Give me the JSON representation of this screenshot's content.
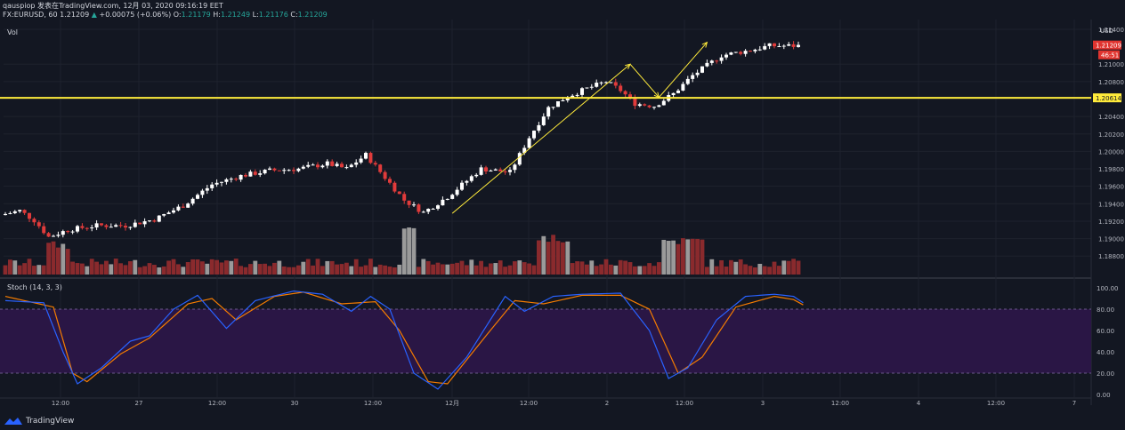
{
  "header": {
    "line1": "qauspiop 发表在TradingView.com, 12月 03, 2020 09:16:19 EET",
    "symbol": "FX:EURUSD, 60",
    "last": "1.21209",
    "change": "+0.00075 (+0.06%)",
    "o_label": "O:",
    "o": "1.21179",
    "h_label": "H:",
    "h": "1.21249",
    "l_label": "L:",
    "l": "1.21176",
    "c_label": "C:",
    "c": "1.21209"
  },
  "labels": {
    "vol": "Vol",
    "stoch": "Stoch (14, 3, 3)",
    "currency": "USD",
    "price_badge": "1.21209",
    "countdown": "46:51",
    "hline_badge": "1.20614",
    "brand": "TradingView"
  },
  "colors": {
    "background": "#131722",
    "grid": "#1e222d",
    "bull": "#ffffff",
    "bear": "#e03b3b",
    "vol_bear": "#8a2a2d",
    "vol_neutral": "#9a9a9a",
    "hline": "#ffeb3b",
    "stoch_k": "#2962ff",
    "stoch_d": "#f57c00",
    "stoch_band": "#2a1645",
    "badge_red": "#e0342f"
  },
  "icons": {
    "brand": "tradingview-logo-icon"
  },
  "chart_data": {
    "type": "candlestick",
    "symbol": "FX:EURUSD",
    "timeframe": "60",
    "x_ticks": [
      "12:00",
      "27",
      "12:00",
      "30",
      "12:00",
      "12月",
      "12:00",
      "2",
      "12:00",
      "3",
      "12:00",
      "4",
      "12:00",
      "7"
    ],
    "price_ticks": [
      "1.21400",
      "1.21000",
      "1.20800",
      "1.20400",
      "1.20200",
      "1.20000",
      "1.19800",
      "1.19600",
      "1.19400",
      "1.19200",
      "1.19000",
      "1.18800"
    ],
    "price_range": [
      1.1868,
      1.2143
    ],
    "horizontal_line": 1.20614,
    "last_price": 1.21209,
    "price_waypoints": [
      [
        0,
        1.1927
      ],
      [
        4,
        1.1932
      ],
      [
        7,
        1.1921
      ],
      [
        10,
        1.1902
      ],
      [
        14,
        1.191
      ],
      [
        20,
        1.1915
      ],
      [
        26,
        1.1915
      ],
      [
        32,
        1.1922
      ],
      [
        38,
        1.1938
      ],
      [
        44,
        1.1962
      ],
      [
        50,
        1.1972
      ],
      [
        56,
        1.1978
      ],
      [
        62,
        1.198
      ],
      [
        68,
        1.1986
      ],
      [
        72,
        1.198
      ],
      [
        76,
        1.1996
      ],
      [
        80,
        1.197
      ],
      [
        84,
        1.1944
      ],
      [
        88,
        1.193
      ],
      [
        93,
        1.1948
      ],
      [
        100,
        1.198
      ],
      [
        106,
        1.1976
      ],
      [
        110,
        1.2016
      ],
      [
        114,
        1.205
      ],
      [
        118,
        1.2063
      ],
      [
        122,
        1.2072
      ],
      [
        126,
        1.208
      ],
      [
        129,
        1.207
      ],
      [
        132,
        1.2055
      ],
      [
        136,
        1.2052
      ],
      [
        140,
        1.2066
      ],
      [
        144,
        1.2087
      ],
      [
        150,
        1.211
      ],
      [
        156,
        1.2116
      ],
      [
        160,
        1.2121
      ],
      [
        166,
        1.2121
      ]
    ],
    "volume_ticks": [],
    "stoch_ticks": [
      "100.00",
      "80.00",
      "60.00",
      "40.00",
      "20.00",
      "0.00"
    ],
    "stoch_band": [
      20,
      80
    ],
    "stoch_k": [
      [
        0,
        88
      ],
      [
        8,
        86
      ],
      [
        12,
        40
      ],
      [
        15,
        10
      ],
      [
        20,
        25
      ],
      [
        26,
        50
      ],
      [
        30,
        55
      ],
      [
        35,
        80
      ],
      [
        40,
        93
      ],
      [
        46,
        62
      ],
      [
        52,
        88
      ],
      [
        60,
        97
      ],
      [
        66,
        94
      ],
      [
        72,
        78
      ],
      [
        76,
        92
      ],
      [
        80,
        80
      ],
      [
        85,
        20
      ],
      [
        90,
        5
      ],
      [
        96,
        35
      ],
      [
        104,
        92
      ],
      [
        108,
        78
      ],
      [
        114,
        92
      ],
      [
        120,
        94
      ],
      [
        128,
        95
      ],
      [
        134,
        60
      ],
      [
        138,
        15
      ],
      [
        142,
        25
      ],
      [
        148,
        70
      ],
      [
        154,
        92
      ],
      [
        160,
        94
      ],
      [
        164,
        92
      ],
      [
        166,
        86
      ]
    ],
    "stoch_d": [
      [
        0,
        92
      ],
      [
        10,
        82
      ],
      [
        14,
        20
      ],
      [
        17,
        12
      ],
      [
        24,
        38
      ],
      [
        30,
        53
      ],
      [
        38,
        85
      ],
      [
        43,
        90
      ],
      [
        48,
        70
      ],
      [
        56,
        92
      ],
      [
        62,
        96
      ],
      [
        70,
        85
      ],
      [
        77,
        87
      ],
      [
        82,
        60
      ],
      [
        88,
        12
      ],
      [
        92,
        10
      ],
      [
        100,
        55
      ],
      [
        106,
        88
      ],
      [
        112,
        85
      ],
      [
        120,
        93
      ],
      [
        128,
        93
      ],
      [
        134,
        80
      ],
      [
        140,
        20
      ],
      [
        145,
        35
      ],
      [
        152,
        82
      ],
      [
        160,
        92
      ],
      [
        164,
        89
      ],
      [
        166,
        84
      ]
    ],
    "drawings": [
      {
        "type": "arrow",
        "from": [
          93,
          1.1929
        ],
        "to": [
          130,
          1.21
        ]
      },
      {
        "type": "arrow",
        "from": [
          130,
          1.21
        ],
        "to": [
          136,
          1.2062
        ]
      },
      {
        "type": "arrow",
        "from": [
          136,
          1.2062
        ],
        "to": [
          146,
          1.2125
        ]
      }
    ]
  }
}
